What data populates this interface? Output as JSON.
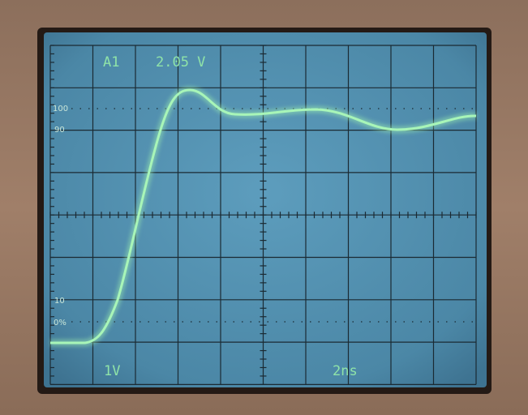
{
  "channel": {
    "label": "A1",
    "reading": "2.05 V"
  },
  "scale_labels": [
    "100",
    "90",
    "10",
    "0%"
  ],
  "volts_per_div": "1V",
  "time_per_div": "2ns"
}
